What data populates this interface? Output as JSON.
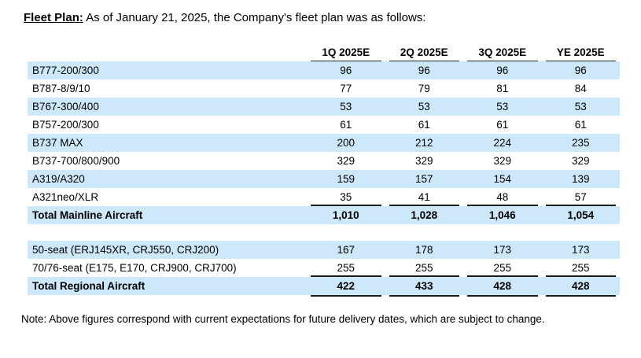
{
  "title": {
    "label": "Fleet Plan:",
    "text": "As of January 21, 2025, the Company's fleet plan was as follows:"
  },
  "table": {
    "columns": [
      "1Q 2025E",
      "2Q 2025E",
      "3Q 2025E",
      "YE 2025E"
    ],
    "sections": [
      {
        "rows": [
          {
            "label": "B777-200/300",
            "values": [
              "96",
              "96",
              "96",
              "96"
            ]
          },
          {
            "label": "B787-8/9/10",
            "values": [
              "77",
              "79",
              "81",
              "84"
            ]
          },
          {
            "label": "B767-300/400",
            "values": [
              "53",
              "53",
              "53",
              "53"
            ]
          },
          {
            "label": "B757-200/300",
            "values": [
              "61",
              "61",
              "61",
              "61"
            ]
          },
          {
            "label": "B737 MAX",
            "values": [
              "200",
              "212",
              "224",
              "235"
            ]
          },
          {
            "label": "B737-700/800/900",
            "values": [
              "329",
              "329",
              "329",
              "329"
            ]
          },
          {
            "label": "A319/A320",
            "values": [
              "159",
              "157",
              "154",
              "139"
            ]
          },
          {
            "label": "A321neo/XLR",
            "values": [
              "35",
              "41",
              "48",
              "57"
            ]
          }
        ],
        "total": {
          "label": "Total Mainline Aircraft",
          "values": [
            "1,010",
            "1,028",
            "1,046",
            "1,054"
          ]
        }
      },
      {
        "rows": [
          {
            "label": "50-seat (ERJ145XR, CRJ550, CRJ200)",
            "values": [
              "167",
              "178",
              "173",
              "173"
            ]
          },
          {
            "label": "70/76-seat (E175, E170, CRJ900, CRJ700)",
            "values": [
              "255",
              "255",
              "255",
              "255"
            ]
          }
        ],
        "total": {
          "label": "Total Regional Aircraft",
          "values": [
            "422",
            "433",
            "428",
            "428"
          ]
        }
      }
    ]
  },
  "note": "Note: Above figures correspond with current expectations for future delivery dates, which are subject to change.",
  "colors": {
    "row_highlight": "#CDE8FA",
    "border": "#262626"
  }
}
